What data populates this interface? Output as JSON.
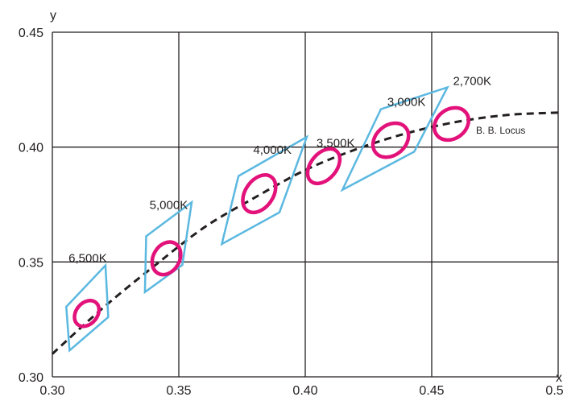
{
  "chart_data": {
    "type": "scatter",
    "title": "",
    "xlabel": "x",
    "ylabel": "y",
    "xlim": [
      0.3,
      0.5
    ],
    "ylim": [
      0.3,
      0.45
    ],
    "x_ticks": [
      "0.30",
      "0.35",
      "0.40",
      "0.45",
      "0.50"
    ],
    "y_ticks": [
      "0.30",
      "0.35",
      "0.40",
      "0.45"
    ],
    "x_tick_values": [
      0.3,
      0.35,
      0.4,
      0.45,
      0.5
    ],
    "y_tick_values": [
      0.3,
      0.35,
      0.4,
      0.45
    ],
    "grid": true,
    "colors": {
      "quadrangle": "#5bb8e0",
      "ellipse": "#e2127a",
      "locus": "#231f20",
      "grid": "#231f20"
    },
    "locus": {
      "name": "B. B. Locus",
      "points": [
        [
          0.3,
          0.31
        ],
        [
          0.32,
          0.33
        ],
        [
          0.34,
          0.348
        ],
        [
          0.36,
          0.365
        ],
        [
          0.38,
          0.378
        ],
        [
          0.4,
          0.39
        ],
        [
          0.42,
          0.399
        ],
        [
          0.44,
          0.406
        ],
        [
          0.46,
          0.411
        ],
        [
          0.48,
          0.414
        ],
        [
          0.5,
          0.415
        ]
      ]
    },
    "regions": [
      {
        "label": "6,500K",
        "label_pos": [
          0.314,
          0.35
        ],
        "ellipse": {
          "cx": 0.3136,
          "cy": 0.3276,
          "rx": 0.0042,
          "ry": 0.0062,
          "angle_deg": 40
        },
        "quadrangle": [
          [
            0.3055,
            0.3305
          ],
          [
            0.321,
            0.3485
          ],
          [
            0.3221,
            0.326
          ],
          [
            0.3068,
            0.3115
          ]
        ]
      },
      {
        "label": "5,000K",
        "label_pos": [
          0.346,
          0.373
        ],
        "ellipse": {
          "cx": 0.3451,
          "cy": 0.3516,
          "rx": 0.0052,
          "ry": 0.0075,
          "angle_deg": 30
        },
        "quadrangle": [
          [
            0.3371,
            0.3612
          ],
          [
            0.3551,
            0.376
          ],
          [
            0.3514,
            0.3487
          ],
          [
            0.3366,
            0.3369
          ]
        ]
      },
      {
        "label": "4,000K",
        "label_pos": [
          0.387,
          0.397
        ],
        "ellipse": {
          "cx": 0.3818,
          "cy": 0.3797,
          "rx": 0.0055,
          "ry": 0.009,
          "angle_deg": 35
        },
        "quadrangle": [
          [
            0.3736,
            0.3874
          ],
          [
            0.4006,
            0.4044
          ],
          [
            0.3898,
            0.3716
          ],
          [
            0.367,
            0.3578
          ]
        ]
      },
      {
        "label": "3,500K",
        "label_pos": [
          0.412,
          0.4
        ],
        "ellipse": {
          "cx": 0.4073,
          "cy": 0.3917,
          "rx": 0.0051,
          "ry": 0.0086,
          "angle_deg": 40
        },
        "quadrangle": []
      },
      {
        "label": "3,000K",
        "label_pos": [
          0.44,
          0.418
        ],
        "ellipse": {
          "cx": 0.4338,
          "cy": 0.403,
          "rx": 0.0059,
          "ry": 0.0085,
          "angle_deg": 50
        },
        "quadrangle": [
          [
            0.4299,
            0.4165
          ],
          [
            0.4562,
            0.426
          ],
          [
            0.4431,
            0.398
          ],
          [
            0.4147,
            0.3814
          ]
        ]
      },
      {
        "label": "2,700K",
        "label_pos": [
          0.466,
          0.427
        ],
        "ellipse": {
          "cx": 0.4578,
          "cy": 0.4101,
          "rx": 0.0058,
          "ry": 0.008,
          "angle_deg": 53
        },
        "quadrangle": []
      }
    ]
  }
}
